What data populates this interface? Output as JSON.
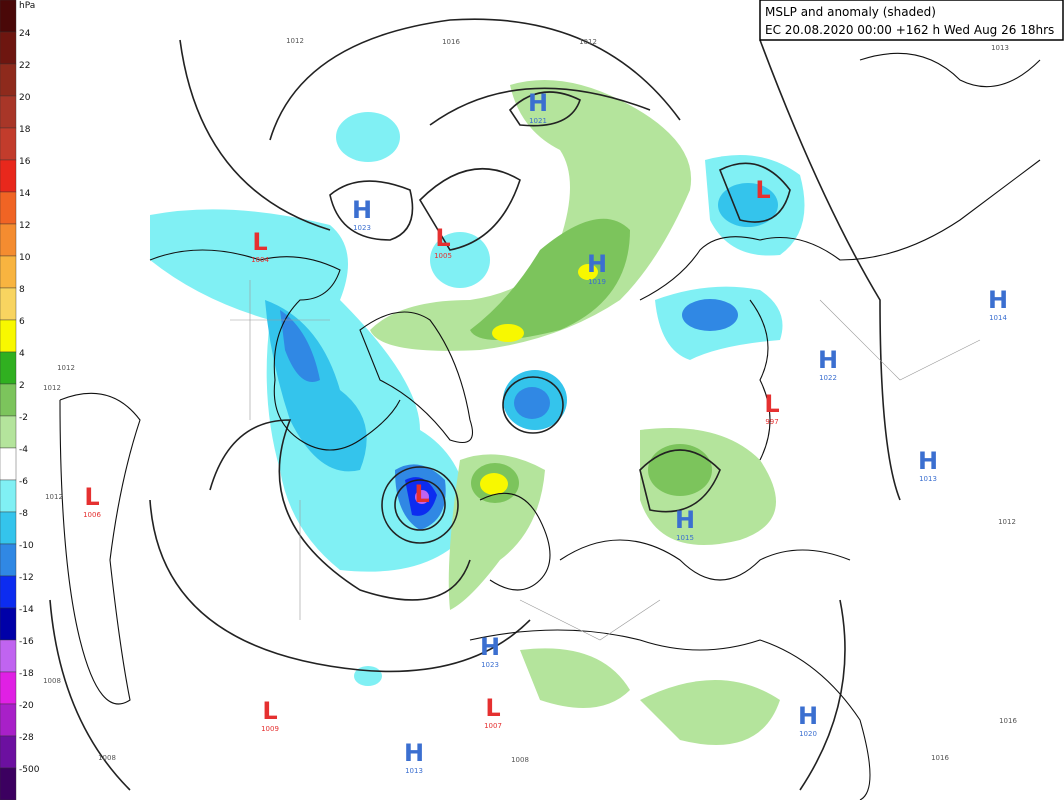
{
  "legend": {
    "unit": "hPa",
    "labels": [
      24,
      22,
      20,
      18,
      16,
      14,
      12,
      10,
      8,
      6,
      4,
      2,
      -2,
      -4,
      -6,
      -8,
      -10,
      -12,
      -14,
      -16,
      -18,
      -20,
      -28,
      -500
    ],
    "colors": [
      "#4a0808",
      "#6e1610",
      "#8e2a1c",
      "#a83628",
      "#c23c2c",
      "#e8281c",
      "#f06424",
      "#f48c30",
      "#f8b440",
      "#f8d460",
      "#f8f800",
      "#30b020",
      "#7cc45c",
      "#b4e49c",
      "#ffffff",
      "#80f0f4",
      "#34c4ec",
      "#3088e4",
      "#0c2cf0",
      "#0000a8",
      "#c064f0",
      "#e020e4",
      "#a820c8",
      "#6c10a0",
      "#3c0060"
    ]
  },
  "title": {
    "line1": "MSLP and anomaly (shaded)",
    "line2": "EC 20.08.2020 00:00 +162 h Wed Aug 26 18hrs"
  },
  "centers": [
    {
      "letter": "H",
      "value": "1021"
    },
    {
      "letter": "H",
      "value": "1023"
    },
    {
      "letter": "L",
      "value": "1005"
    },
    {
      "letter": "L",
      "value": "1004"
    },
    {
      "letter": "H",
      "value": "1019"
    },
    {
      "letter": "L"
    },
    {
      "letter": "H",
      "value": "1014"
    },
    {
      "letter": "H",
      "value": "1022"
    },
    {
      "letter": "L",
      "value": "997"
    },
    {
      "letter": "L",
      "value": "1006"
    },
    {
      "letter": "L"
    },
    {
      "letter": "H",
      "value": "1013"
    },
    {
      "letter": "H",
      "value": "1015"
    },
    {
      "letter": "H",
      "value": "1023"
    },
    {
      "letter": "L",
      "value": "1009"
    },
    {
      "letter": "L",
      "value": "1007"
    },
    {
      "letter": "H",
      "value": "1020"
    },
    {
      "letter": "H",
      "value": "1013"
    }
  ],
  "isobar_labels": [
    "1012",
    "1016",
    "1012",
    "1013",
    "1012",
    "1012",
    "1012",
    "1008",
    "1008",
    "1008",
    "1012",
    "1016",
    "1016"
  ]
}
